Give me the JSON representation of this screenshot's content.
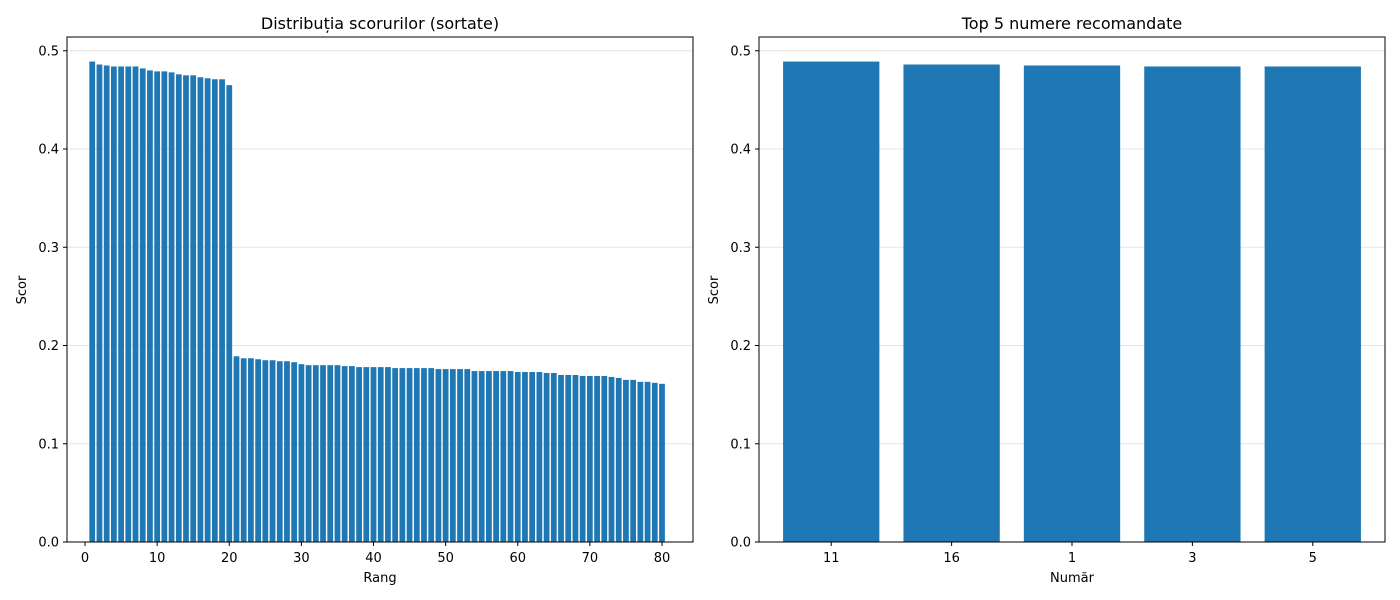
{
  "chart_data": [
    {
      "type": "bar",
      "title": "Distribuția scorurilor (sortate)",
      "xlabel": "Rang",
      "ylabel": "Scor",
      "xlim": [
        -2.5,
        84.3
      ],
      "ylim": [
        0,
        0.514
      ],
      "xticks": [
        0,
        10,
        20,
        30,
        40,
        50,
        60,
        70,
        80
      ],
      "xtick_labels": [
        "0",
        "10",
        "20",
        "30",
        "40",
        "50",
        "60",
        "70",
        "80"
      ],
      "yticks": [
        0.0,
        0.1,
        0.2,
        0.3,
        0.4,
        0.5
      ],
      "ytick_labels": [
        "0.0",
        "0.1",
        "0.2",
        "0.3",
        "0.4",
        "0.5"
      ],
      "grid": "y",
      "bar_color": "#1f77b4",
      "x": [
        1,
        2,
        3,
        4,
        5,
        6,
        7,
        8,
        9,
        10,
        11,
        12,
        13,
        14,
        15,
        16,
        17,
        18,
        19,
        20,
        21,
        22,
        23,
        24,
        25,
        26,
        27,
        28,
        29,
        30,
        31,
        32,
        33,
        34,
        35,
        36,
        37,
        38,
        39,
        40,
        41,
        42,
        43,
        44,
        45,
        46,
        47,
        48,
        49,
        50,
        51,
        52,
        53,
        54,
        55,
        56,
        57,
        58,
        59,
        60,
        61,
        62,
        63,
        64,
        65,
        66,
        67,
        68,
        69,
        70,
        71,
        72,
        73,
        74,
        75,
        76,
        77,
        78,
        79,
        80
      ],
      "values": [
        0.489,
        0.486,
        0.485,
        0.484,
        0.484,
        0.484,
        0.484,
        0.482,
        0.48,
        0.479,
        0.479,
        0.478,
        0.476,
        0.475,
        0.475,
        0.473,
        0.472,
        0.471,
        0.471,
        0.465,
        0.189,
        0.187,
        0.187,
        0.186,
        0.185,
        0.185,
        0.184,
        0.184,
        0.183,
        0.181,
        0.18,
        0.18,
        0.18,
        0.18,
        0.18,
        0.179,
        0.179,
        0.178,
        0.178,
        0.178,
        0.178,
        0.178,
        0.177,
        0.177,
        0.177,
        0.177,
        0.177,
        0.177,
        0.176,
        0.176,
        0.176,
        0.176,
        0.176,
        0.174,
        0.174,
        0.174,
        0.174,
        0.174,
        0.174,
        0.173,
        0.173,
        0.173,
        0.173,
        0.172,
        0.172,
        0.17,
        0.17,
        0.17,
        0.169,
        0.169,
        0.169,
        0.169,
        0.168,
        0.167,
        0.165,
        0.165,
        0.163,
        0.163,
        0.162,
        0.161
      ]
    },
    {
      "type": "bar",
      "title": "Top 5 numere recomandate",
      "xlabel": "Număr",
      "ylabel": "Scor",
      "xlim": [
        -0.6,
        4.6
      ],
      "ylim": [
        0,
        0.514
      ],
      "yticks": [
        0.0,
        0.1,
        0.2,
        0.3,
        0.4,
        0.5
      ],
      "ytick_labels": [
        "0.0",
        "0.1",
        "0.2",
        "0.3",
        "0.4",
        "0.5"
      ],
      "grid": "y",
      "bar_color": "#1f77b4",
      "categories": [
        "11",
        "16",
        "1",
        "3",
        "5"
      ],
      "values": [
        0.489,
        0.486,
        0.485,
        0.484,
        0.484
      ]
    }
  ]
}
